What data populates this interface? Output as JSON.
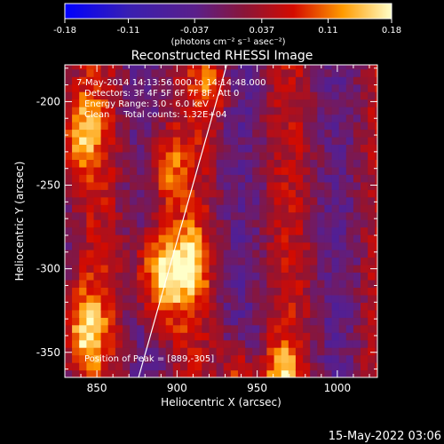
{
  "chart_data": {
    "type": "heatmap",
    "title": "Reconstructed RHESSI Image",
    "xlabel": "Heliocentric X (arcsec)",
    "ylabel": "Heliocentric Y (arcsec)",
    "xlim": [
      830,
      1025
    ],
    "ylim": [
      -365,
      -178
    ],
    "x_ticks": [
      "850",
      "900",
      "950",
      "1000"
    ],
    "x_tick_values": [
      850,
      900,
      950,
      1000
    ],
    "y_ticks": [
      "-350",
      "-300",
      "-250",
      "-200"
    ],
    "y_tick_values": [
      -350,
      -300,
      -250,
      -200
    ],
    "colorbar": {
      "min": -0.18,
      "max": 0.18,
      "tick_labels": [
        "-0.18",
        "-0.11",
        "-0.037",
        "0.037",
        "0.11",
        "0.18"
      ],
      "tick_values": [
        -0.18,
        -0.11,
        -0.037,
        0.037,
        0.11,
        0.18
      ],
      "unit_label": "(photons cm⁻² s⁻¹ asec⁻²)"
    },
    "annotations": [
      "7-May-2014 14:13:56.000 to 14:14:48.000",
      "Detectors: 3F 4F 5F 6F 7F 8F, Att 0",
      "Energy Range: 3.0 - 6.0 keV",
      "Clean     Total counts: 1.32E+04"
    ],
    "peak_label": "Position of Peak = [889,-305]",
    "peak": [
      889,
      -305
    ],
    "limb_line": [
      [
        876,
        -365
      ],
      [
        931,
        -178
      ]
    ],
    "sources": [
      {
        "x": 890,
        "y": -303,
        "amplitude": 0.18,
        "sigma": 14
      },
      {
        "x": 910,
        "y": -296,
        "amplitude": 0.1,
        "sigma": 10
      },
      {
        "x": 840,
        "y": -218,
        "amplitude": 0.12,
        "sigma": 12
      },
      {
        "x": 893,
        "y": -238,
        "amplitude": 0.1,
        "sigma": 11
      },
      {
        "x": 843,
        "y": -337,
        "amplitude": 0.13,
        "sigma": 12
      },
      {
        "x": 938,
        "y": -363,
        "amplitude": 0.11,
        "sigma": 9
      },
      {
        "x": 965,
        "y": -362,
        "amplitude": 0.12,
        "sigma": 9
      },
      {
        "x": 922,
        "y": -190,
        "amplitude": 0.09,
        "sigma": 9
      }
    ]
  },
  "footer": {
    "date": "15-May-2022 03:06"
  }
}
